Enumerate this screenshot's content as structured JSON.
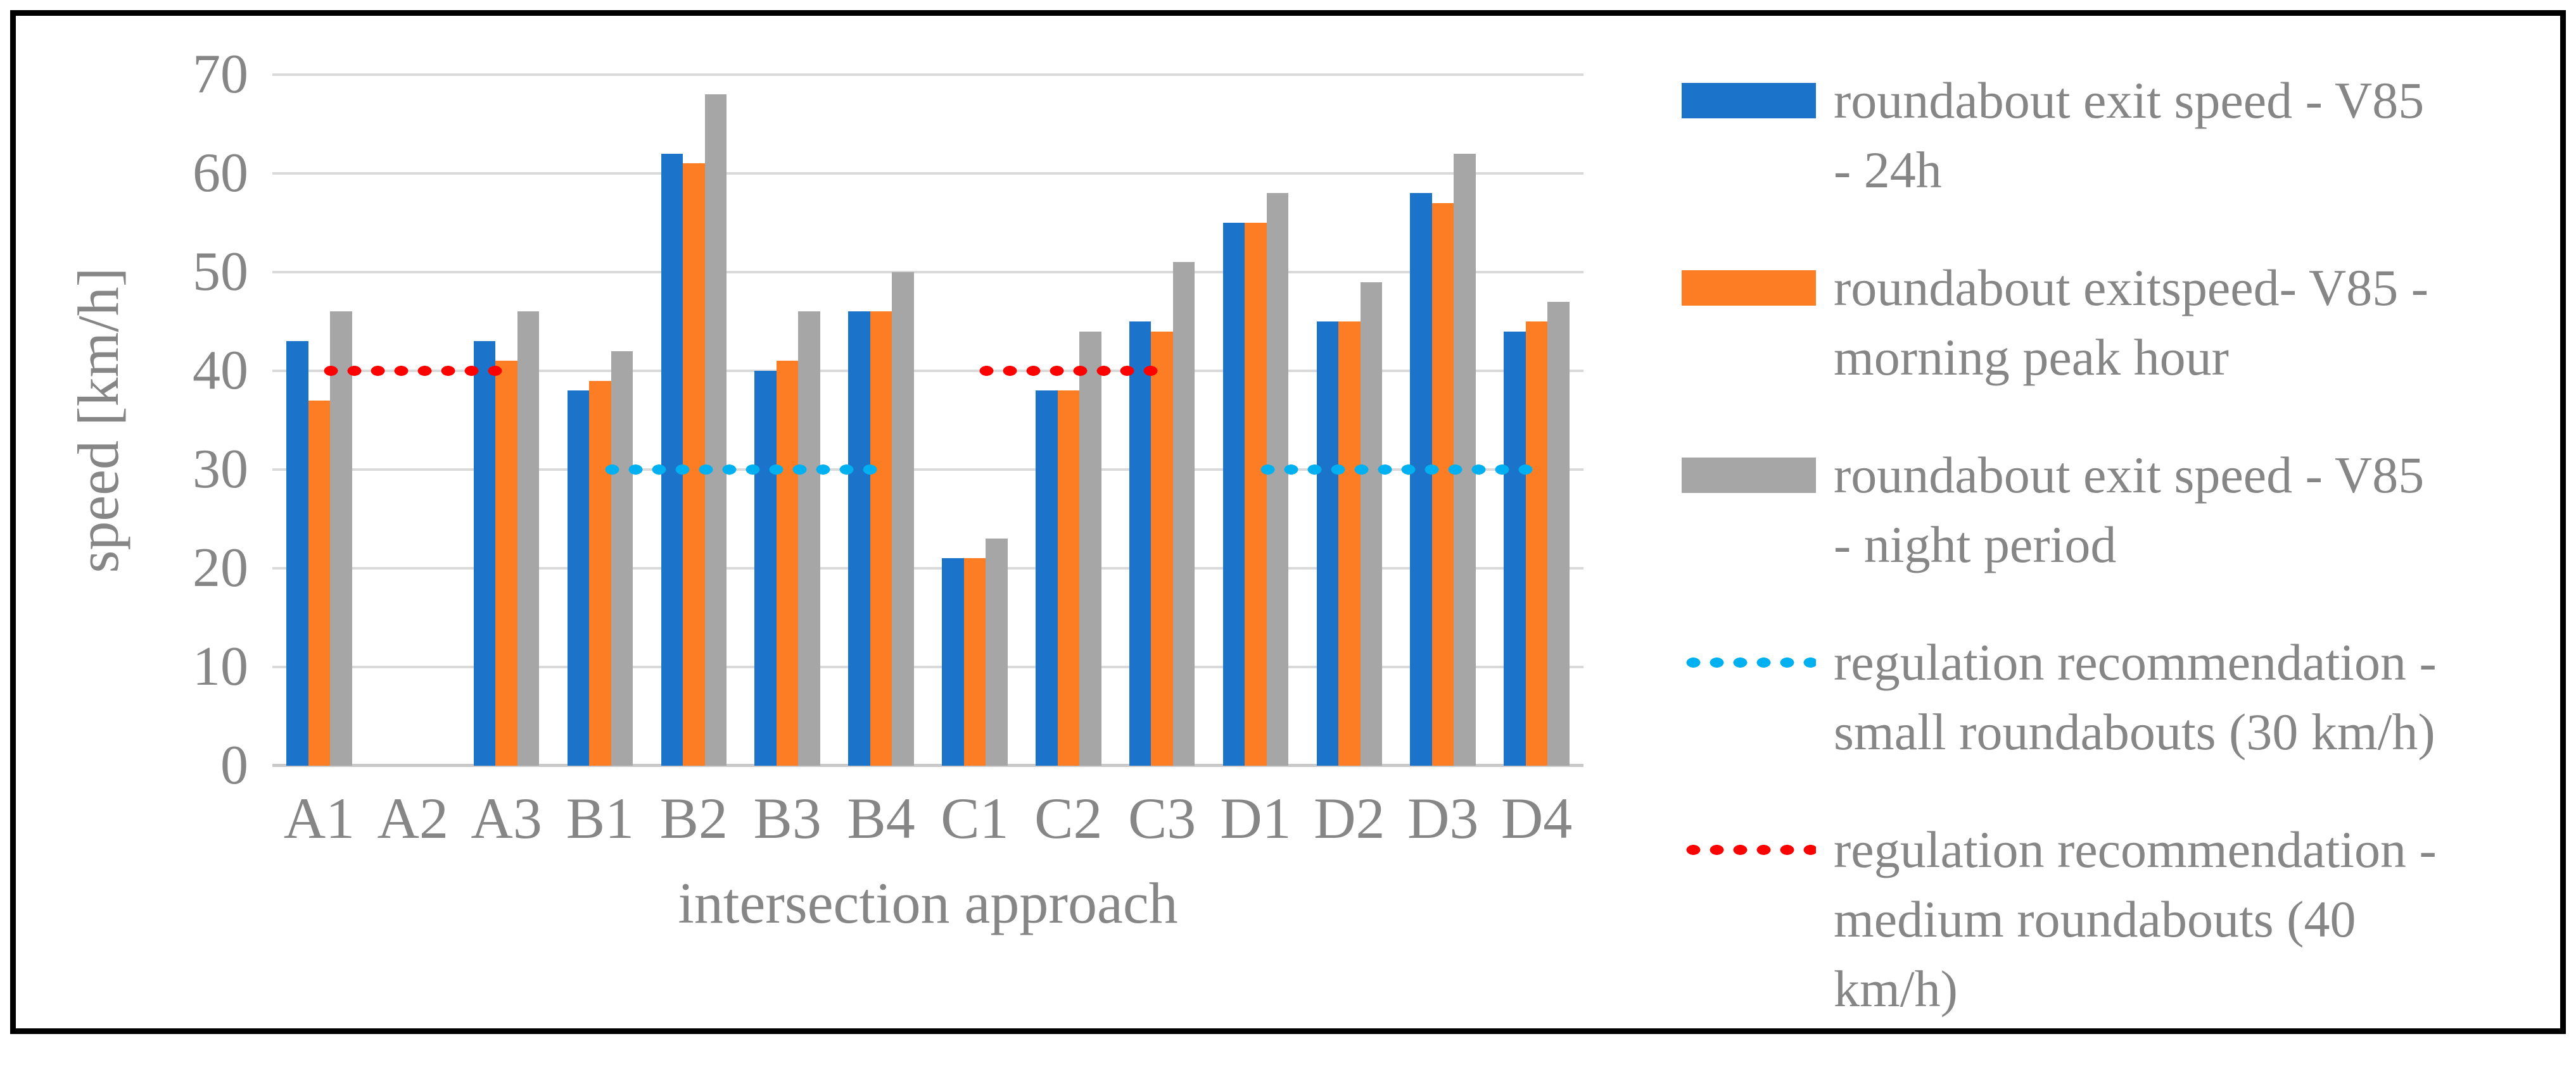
{
  "figure": {
    "y_axis_title": "speed [km/h]",
    "x_axis_title": "intersection approach",
    "colors": {
      "series_24h": "#1B74C9",
      "series_morning_peak": "#FC7D23",
      "series_night": "#A6A6A6",
      "ref_small_roundabouts": "#00B0F0",
      "ref_medium_roundabouts": "#FF0000",
      "gridline": "#D9D9D9",
      "baseline": "#C9C9C9",
      "axis_text": "#868686",
      "border": "#000000"
    }
  },
  "chart_data": {
    "type": "bar",
    "title": "",
    "xlabel": "intersection approach",
    "ylabel": "speed [km/h]",
    "ylim": [
      0,
      70
    ],
    "yticks": [
      0,
      10,
      20,
      30,
      40,
      50,
      60,
      70
    ],
    "grid": "horizontal",
    "legend_position": "right",
    "categories": [
      "A1",
      "A2",
      "A3",
      "B1",
      "B2",
      "B3",
      "B4",
      "C1",
      "C2",
      "C3",
      "D1",
      "D2",
      "D3",
      "D4"
    ],
    "series": [
      {
        "key": "v85-24h",
        "name": "roundabout exit speed - V85 - 24h",
        "color": "#1B74C9",
        "values": [
          43,
          null,
          43,
          38,
          62,
          40,
          46,
          21,
          38,
          45,
          55,
          45,
          58,
          44
        ]
      },
      {
        "key": "v85-morning-peak",
        "name": "roundabout exitspeed- V85 - morning peak hour",
        "color": "#FC7D23",
        "values": [
          37,
          null,
          41,
          39,
          61,
          41,
          46,
          21,
          38,
          44,
          55,
          45,
          57,
          45
        ]
      },
      {
        "key": "v85-night",
        "name": "roundabout exit speed - V85 - night period",
        "color": "#A6A6A6",
        "values": [
          46,
          null,
          46,
          42,
          68,
          46,
          50,
          23,
          44,
          51,
          58,
          49,
          62,
          47
        ]
      }
    ],
    "reference_lines": [
      {
        "key": "reg-small-roundabouts",
        "name": "regulation recommendation - small roundabouts (30 km/h)",
        "value": 30,
        "color": "#00B0F0",
        "style": "dotted",
        "spans": [
          [
            "B1",
            "B4"
          ],
          [
            "D1",
            "D4"
          ]
        ]
      },
      {
        "key": "reg-medium-roundabouts",
        "name": "regulation recommendation - medium roundabouts (40 km/h)",
        "value": 40,
        "color": "#FF0000",
        "style": "dotted",
        "spans": [
          [
            "A1",
            "A3"
          ],
          [
            "C1",
            "C3"
          ]
        ]
      }
    ]
  },
  "legend": {
    "entries": [
      {
        "key": "v85-24h",
        "type": "bar-swatch",
        "color": "#1B74C9",
        "label": "roundabout exit speed - V85\n- 24h"
      },
      {
        "key": "v85-morning-peak",
        "type": "bar-swatch",
        "color": "#FC7D23",
        "label": "roundabout exitspeed- V85 -\nmorning peak hour"
      },
      {
        "key": "v85-night",
        "type": "bar-swatch",
        "color": "#A6A6A6",
        "label": "roundabout exit speed - V85\n- night period"
      },
      {
        "key": "reg-small-roundabouts",
        "type": "dotted-line",
        "color": "#00B0F0",
        "label": "regulation recommendation -\nsmall roundabouts (30 km/h)"
      },
      {
        "key": "reg-medium-roundabouts",
        "type": "dotted-line",
        "color": "#FF0000",
        "label": "regulation recommendation -\nmedium roundabouts (40\nkm/h)"
      }
    ]
  }
}
